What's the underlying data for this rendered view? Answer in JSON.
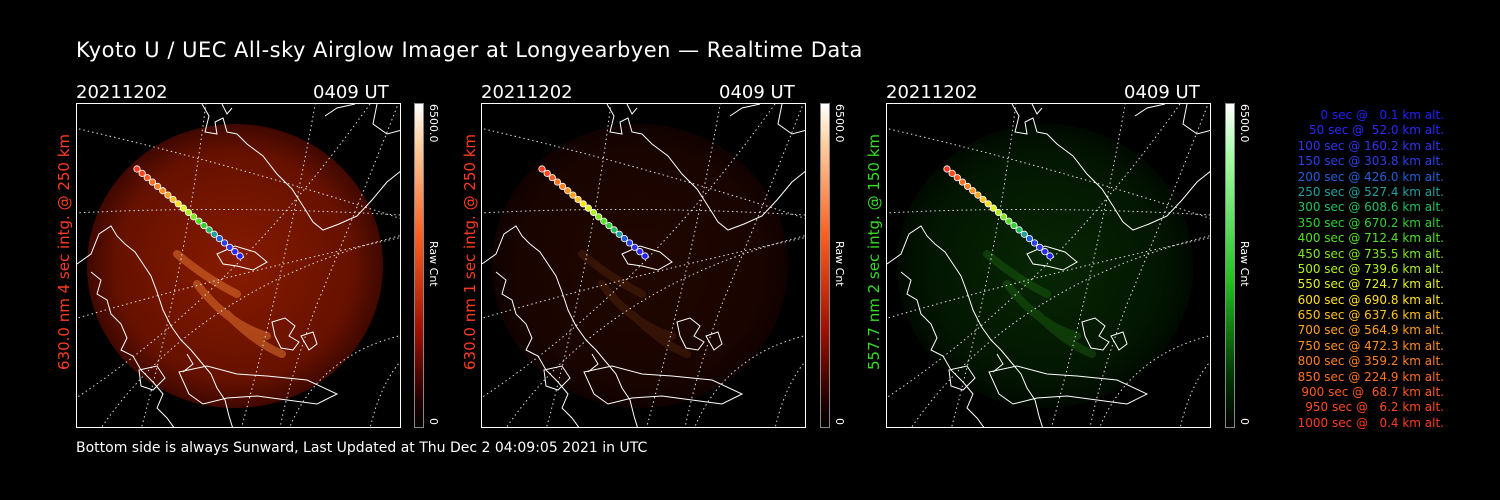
{
  "title": "Kyoto U / UEC All-sky Airglow Imager at Longyearbyen — Realtime Data",
  "panels": [
    {
      "date": "20211202",
      "time": "0409 UT",
      "label": "630.0 nm 4 sec intg. @ 250 km",
      "label_color": "#ff3b1f",
      "scale_max": "6500.0",
      "scale_min": "0",
      "scale_unit": "Raw Cnt",
      "tint": "red",
      "intensity": 1.0
    },
    {
      "date": "20211202",
      "time": "0409 UT",
      "label": "630.0 nm 1 sec intg. @ 250 km",
      "label_color": "#ff3b1f",
      "scale_max": "6500.0",
      "scale_min": "0",
      "scale_unit": "Raw Cnt",
      "tint": "red",
      "intensity": 0.25
    },
    {
      "date": "20211202",
      "time": "0409 UT",
      "label": "557.7 nm 2 sec intg. @ 150 km",
      "label_color": "#33dd22",
      "scale_max": "6500.0",
      "scale_min": "0",
      "scale_unit": "Raw Cnt",
      "tint": "green",
      "intensity": 0.6
    }
  ],
  "legend": [
    {
      "text": "0 sec @   0.1 km alt.",
      "color": "#2020ff"
    },
    {
      "text": "50 sec @  52.0 km alt.",
      "color": "#2a2aff"
    },
    {
      "text": "100 sec @ 160.2 km alt.",
      "color": "#3333ee"
    },
    {
      "text": "150 sec @ 303.8 km alt.",
      "color": "#2a40e8"
    },
    {
      "text": "200 sec @ 426.0 km alt.",
      "color": "#2060d8"
    },
    {
      "text": "250 sec @ 527.4 km alt.",
      "color": "#20a0a0"
    },
    {
      "text": "300 sec @ 608.6 km alt.",
      "color": "#20c060"
    },
    {
      "text": "350 sec @ 670.2 km alt.",
      "color": "#30d030"
    },
    {
      "text": "400 sec @ 712.4 km alt.",
      "color": "#50e020"
    },
    {
      "text": "450 sec @ 735.5 km alt.",
      "color": "#80e820"
    },
    {
      "text": "500 sec @ 739.6 km alt.",
      "color": "#b0f020"
    },
    {
      "text": "550 sec @ 724.7 km alt.",
      "color": "#e0f020"
    },
    {
      "text": "600 sec @ 690.8 km alt.",
      "color": "#ffe020"
    },
    {
      "text": "650 sec @ 637.6 km alt.",
      "color": "#ffc020"
    },
    {
      "text": "700 sec @ 564.9 km alt.",
      "color": "#ffa020"
    },
    {
      "text": "750 sec @ 472.3 km alt.",
      "color": "#ff9020"
    },
    {
      "text": "800 sec @ 359.2 km alt.",
      "color": "#ff8020"
    },
    {
      "text": "850 sec @ 224.9 km alt.",
      "color": "#ff7020"
    },
    {
      "text": "900 sec @  68.7 km alt.",
      "color": "#ff5a20"
    },
    {
      "text": "950 sec @   6.2 km alt.",
      "color": "#ff4a20"
    },
    {
      "text": "1000 sec @   0.4 km alt.",
      "color": "#ff3a20"
    }
  ],
  "footer": "Bottom side is always Sunward, Last Updated at Thu Dec  2 04:09:05 2021 in UTC"
}
